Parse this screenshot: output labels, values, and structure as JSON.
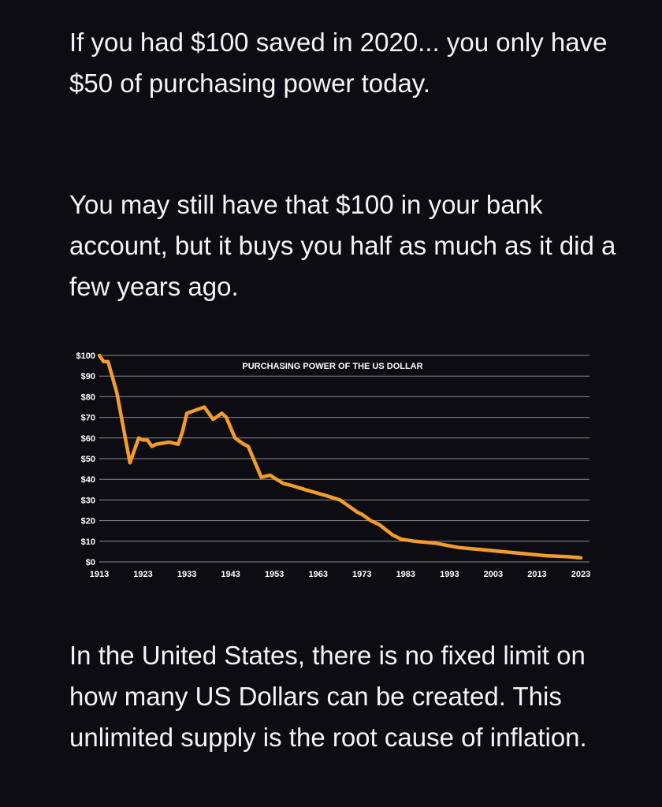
{
  "post": {
    "paragraph_1": "If you had $100 saved in 2020... you only have $50 of purchasing power today.",
    "paragraph_2": "You may still have that $100 in your bank account, but it buys you half as much as it did a few years ago.",
    "paragraph_3": "In the United States, there is no fixed limit on how many US Dollars can be created. This unlimited supply is the root cause of inflation."
  },
  "colors": {
    "background": "#0c0c12",
    "line": "#f39c2b",
    "grid": "#8a8a92",
    "text": "#ffffff"
  },
  "chart_data": {
    "type": "line",
    "title": "PURCHASING POWER OF THE US DOLLAR",
    "xlabel": "",
    "ylabel": "",
    "xlim": [
      1913,
      2023
    ],
    "ylim": [
      0,
      100
    ],
    "y_ticks": [
      "$0",
      "$10",
      "$20",
      "$30",
      "$40",
      "$50",
      "$60",
      "$70",
      "$80",
      "$90",
      "$100"
    ],
    "x_ticks": [
      "1913",
      "1923",
      "1933",
      "1943",
      "1953",
      "1963",
      "1973",
      "1983",
      "1993",
      "2003",
      "2013",
      "2023"
    ],
    "grid": true,
    "series": [
      {
        "x": [
          1913,
          1914,
          1915,
          1917,
          1920,
          1922,
          1923,
          1924,
          1925,
          1926,
          1929,
          1931,
          1932,
          1933,
          1937,
          1939,
          1941,
          1942,
          1944,
          1946,
          1947,
          1950,
          1952,
          1955,
          1957,
          1960,
          1965,
          1968,
          1972,
          1973,
          1975,
          1977,
          1980,
          1982,
          1985,
          1990,
          1995,
          2000,
          2005,
          2010,
          2015,
          2020,
          2023
        ],
        "y": [
          100,
          97,
          97,
          82,
          48,
          60,
          59,
          59,
          56,
          57,
          58,
          57,
          63,
          72,
          75,
          69,
          72,
          70,
          60,
          57,
          56,
          41,
          42,
          38,
          37,
          35,
          32,
          30,
          24,
          23,
          20,
          18,
          13,
          11,
          10,
          9,
          7,
          6,
          5,
          4,
          3,
          2.5,
          2
        ]
      }
    ]
  }
}
